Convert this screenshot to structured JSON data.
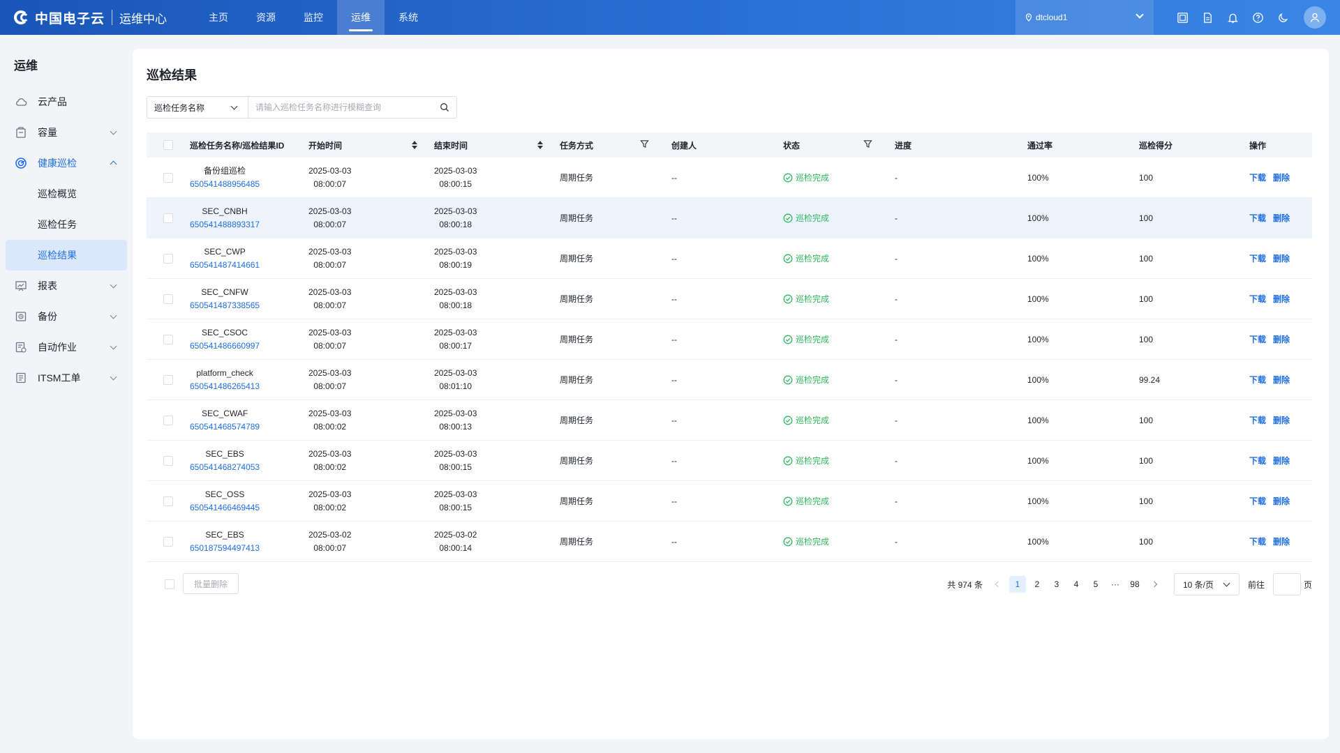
{
  "brand": {
    "name": "中国电子云",
    "sub": "运维中心"
  },
  "topnav": [
    {
      "label": "主页",
      "active": false
    },
    {
      "label": "资源",
      "active": false
    },
    {
      "label": "监控",
      "active": false
    },
    {
      "label": "运维",
      "active": true
    },
    {
      "label": "系统",
      "active": false
    }
  ],
  "region": {
    "label": "dtcloud1",
    "icon": "location-pin-icon"
  },
  "top_icons": [
    "screen-icon",
    "document-icon",
    "bell-icon",
    "help-icon",
    "moon-icon"
  ],
  "sidebar": {
    "title": "运维",
    "items": [
      {
        "label": "云产品",
        "icon": "cloud-icon"
      },
      {
        "label": "容量",
        "icon": "capacity-icon"
      },
      {
        "label": "健康巡检",
        "icon": "health-icon",
        "children": [
          "巡检概览",
          "巡检任务",
          "巡检结果"
        ],
        "active_child": "巡检结果"
      },
      {
        "label": "报表",
        "icon": "report-icon"
      },
      {
        "label": "备份",
        "icon": "backup-icon"
      },
      {
        "label": "自动作业",
        "icon": "automation-icon"
      },
      {
        "label": "ITSM工单",
        "icon": "ticket-icon"
      }
    ]
  },
  "page": {
    "title": "巡检结果"
  },
  "search": {
    "select_label": "巡检任务名称",
    "placeholder": "请输入巡检任务名称进行模糊查询"
  },
  "table": {
    "headers": {
      "name": "巡检任务名称/巡检结果ID",
      "start": "开始时间",
      "end": "结束时间",
      "mode": "任务方式",
      "creator": "创建人",
      "status": "状态",
      "progress": "进度",
      "pass_rate": "通过率",
      "score": "巡检得分",
      "ops": "操作"
    },
    "op_labels": {
      "download": "下载",
      "delete": "删除"
    },
    "rows": [
      {
        "name": "备份组巡检",
        "id": "650541488956485",
        "start_date": "2025-03-03",
        "start_time": "08:00:07",
        "end_date": "2025-03-03",
        "end_time": "08:00:15",
        "mode": "周期任务",
        "creator": "--",
        "status": "巡检完成",
        "progress": "-",
        "pass_rate": "100%",
        "score": "100"
      },
      {
        "name": "SEC_CNBH",
        "id": "650541488893317",
        "start_date": "2025-03-03",
        "start_time": "08:00:07",
        "end_date": "2025-03-03",
        "end_time": "08:00:18",
        "mode": "周期任务",
        "creator": "--",
        "status": "巡检完成",
        "progress": "-",
        "pass_rate": "100%",
        "score": "100"
      },
      {
        "name": "SEC_CWP",
        "id": "650541487414661",
        "start_date": "2025-03-03",
        "start_time": "08:00:07",
        "end_date": "2025-03-03",
        "end_time": "08:00:19",
        "mode": "周期任务",
        "creator": "--",
        "status": "巡检完成",
        "progress": "-",
        "pass_rate": "100%",
        "score": "100"
      },
      {
        "name": "SEC_CNFW",
        "id": "650541487338565",
        "start_date": "2025-03-03",
        "start_time": "08:00:07",
        "end_date": "2025-03-03",
        "end_time": "08:00:18",
        "mode": "周期任务",
        "creator": "--",
        "status": "巡检完成",
        "progress": "-",
        "pass_rate": "100%",
        "score": "100"
      },
      {
        "name": "SEC_CSOC",
        "id": "650541486660997",
        "start_date": "2025-03-03",
        "start_time": "08:00:07",
        "end_date": "2025-03-03",
        "end_time": "08:00:17",
        "mode": "周期任务",
        "creator": "--",
        "status": "巡检完成",
        "progress": "-",
        "pass_rate": "100%",
        "score": "100"
      },
      {
        "name": "platform_check",
        "id": "650541486265413",
        "start_date": "2025-03-03",
        "start_time": "08:00:07",
        "end_date": "2025-03-03",
        "end_time": "08:01:10",
        "mode": "周期任务",
        "creator": "--",
        "status": "巡检完成",
        "progress": "-",
        "pass_rate": "100%",
        "score": "99.24"
      },
      {
        "name": "SEC_CWAF",
        "id": "650541468574789",
        "start_date": "2025-03-03",
        "start_time": "08:00:02",
        "end_date": "2025-03-03",
        "end_time": "08:00:13",
        "mode": "周期任务",
        "creator": "--",
        "status": "巡检完成",
        "progress": "-",
        "pass_rate": "100%",
        "score": "100"
      },
      {
        "name": "SEC_EBS",
        "id": "650541468274053",
        "start_date": "2025-03-03",
        "start_time": "08:00:02",
        "end_date": "2025-03-03",
        "end_time": "08:00:15",
        "mode": "周期任务",
        "creator": "--",
        "status": "巡检完成",
        "progress": "-",
        "pass_rate": "100%",
        "score": "100"
      },
      {
        "name": "SEC_OSS",
        "id": "650541466469445",
        "start_date": "2025-03-03",
        "start_time": "08:00:02",
        "end_date": "2025-03-03",
        "end_time": "08:00:15",
        "mode": "周期任务",
        "creator": "--",
        "status": "巡检完成",
        "progress": "-",
        "pass_rate": "100%",
        "score": "100"
      },
      {
        "name": "SEC_EBS",
        "id": "650187594497413",
        "start_date": "2025-03-02",
        "start_time": "08:00:07",
        "end_date": "2025-03-02",
        "end_time": "08:00:14",
        "mode": "周期任务",
        "creator": "--",
        "status": "巡检完成",
        "progress": "-",
        "pass_rate": "100%",
        "score": "100"
      }
    ]
  },
  "footer": {
    "batch_delete": "批量删除",
    "total": "共 974 条",
    "pages": [
      "1",
      "2",
      "3",
      "4",
      "5",
      "98"
    ],
    "ellipsis": "···",
    "current_page": "1",
    "page_size": "10 条/页",
    "goto_prefix": "前往",
    "goto_suffix": "页"
  },
  "colors": {
    "accent": "#1f6fe5",
    "success": "#2fb85c",
    "topbar": "#1a56b8"
  }
}
